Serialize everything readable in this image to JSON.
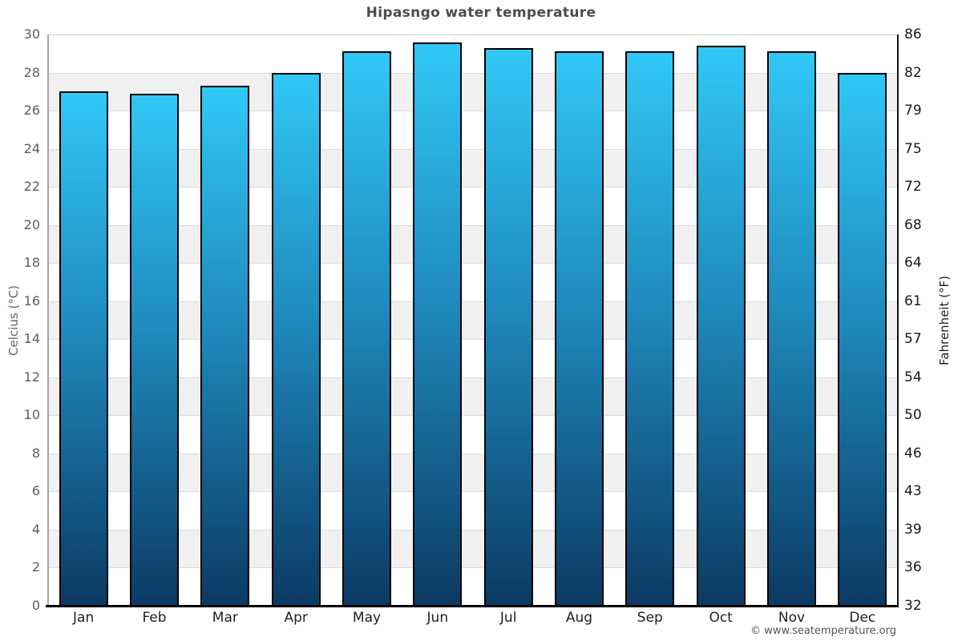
{
  "page": {
    "title": "Hipasngo water temperature",
    "copyright": "© www.seatemperature.org"
  },
  "chart_data": {
    "type": "bar",
    "title": "Hipasngo water temperature",
    "categories": [
      "Jan",
      "Feb",
      "Mar",
      "Apr",
      "May",
      "Jun",
      "Jul",
      "Aug",
      "Sep",
      "Oct",
      "Nov",
      "Dec"
    ],
    "values": [
      27.0,
      26.9,
      27.3,
      28.0,
      29.1,
      29.6,
      29.3,
      29.1,
      29.1,
      29.4,
      29.1,
      28.0
    ],
    "series_name": "Water temperature",
    "unit": "°C",
    "xlabel": "",
    "ylabel_left": "Celcius (°C)",
    "ylabel_right": "Fahrenheit (°F)",
    "ylim": [
      0,
      30
    ],
    "yticks_celsius": [
      30,
      28,
      26,
      24,
      22,
      20,
      18,
      16,
      14,
      12,
      10,
      8,
      6,
      4,
      2,
      0
    ],
    "yticks_fahrenheit": [
      86,
      82,
      79,
      75,
      72,
      68,
      64,
      61,
      57,
      54,
      50,
      46,
      43,
      39,
      36,
      32
    ],
    "grid": "alternating horizontal bands every 2°C",
    "legend": "none"
  },
  "colors": {
    "bar_gradient_top": "#31c8f6",
    "bar_gradient_mid": "#1e87ba",
    "bar_gradient_bottom": "#0b3a63",
    "bar_border": "#000000",
    "band_shaded": "#f0f0f0",
    "band_plain": "#ffffff",
    "gridline": "#dcdcdc",
    "gridline_top": "#cfcfcf",
    "axis_left": "#a3a3a3",
    "axis_right": "#111111",
    "axis_bottom": "#000000",
    "title_text": "#4d4d4d",
    "tick_text_left": "#5c5c5c",
    "tick_text_right": "#1a1a1a",
    "month_text": "#1f1f1f",
    "ylabel_left_text": "#666666",
    "ylabel_right_text": "#222222",
    "footer_text": "#555555"
  }
}
